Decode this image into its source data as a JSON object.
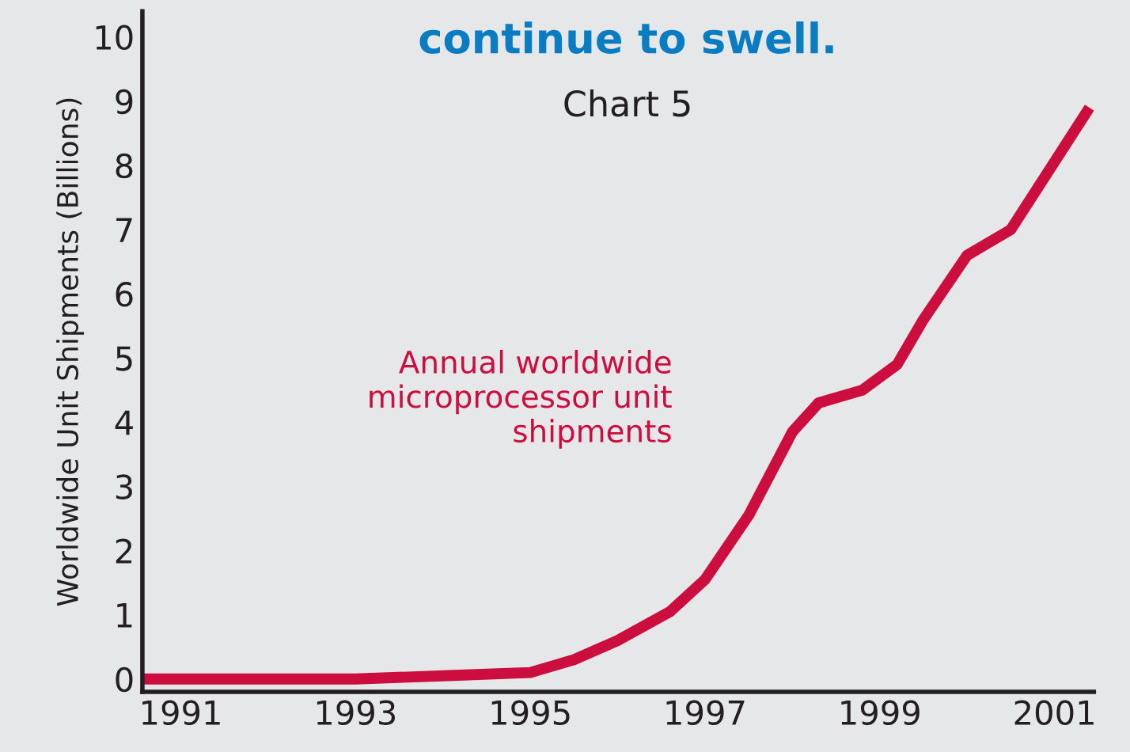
{
  "chart_data": {
    "type": "line",
    "title": "continue to swell.",
    "subtitle": "Chart 5",
    "ylabel": "Worldwide Unit Shipments (Billions)",
    "x": [
      1990.57,
      1993,
      1994,
      1995,
      1995.5,
      1996,
      1996.6,
      1997,
      1997.5,
      1998,
      1998.3,
      1998.8,
      1999.2,
      1999.5,
      2000,
      2000.5,
      2001.4
    ],
    "series": [
      {
        "name": "Annual worldwide\nmicroprocessor unit\nshipments",
        "color": "#cc0e3e",
        "values": [
          0,
          0,
          0.05,
          0.1,
          0.3,
          0.6,
          1.05,
          1.55,
          2.55,
          3.85,
          4.3,
          4.5,
          4.9,
          5.6,
          6.6,
          7.0,
          8.9
        ]
      }
    ],
    "xlim": [
      1990.56,
      2001.45
    ],
    "ylim": [
      -0.2,
      10.4
    ],
    "xticks": [
      1991,
      1993,
      1995,
      1997,
      1999,
      2001
    ],
    "yticks": [
      0,
      1,
      2,
      3,
      4,
      5,
      6,
      7,
      8,
      9,
      10
    ],
    "grid": false,
    "legend": false,
    "marker": "none",
    "line_style": "solid"
  }
}
